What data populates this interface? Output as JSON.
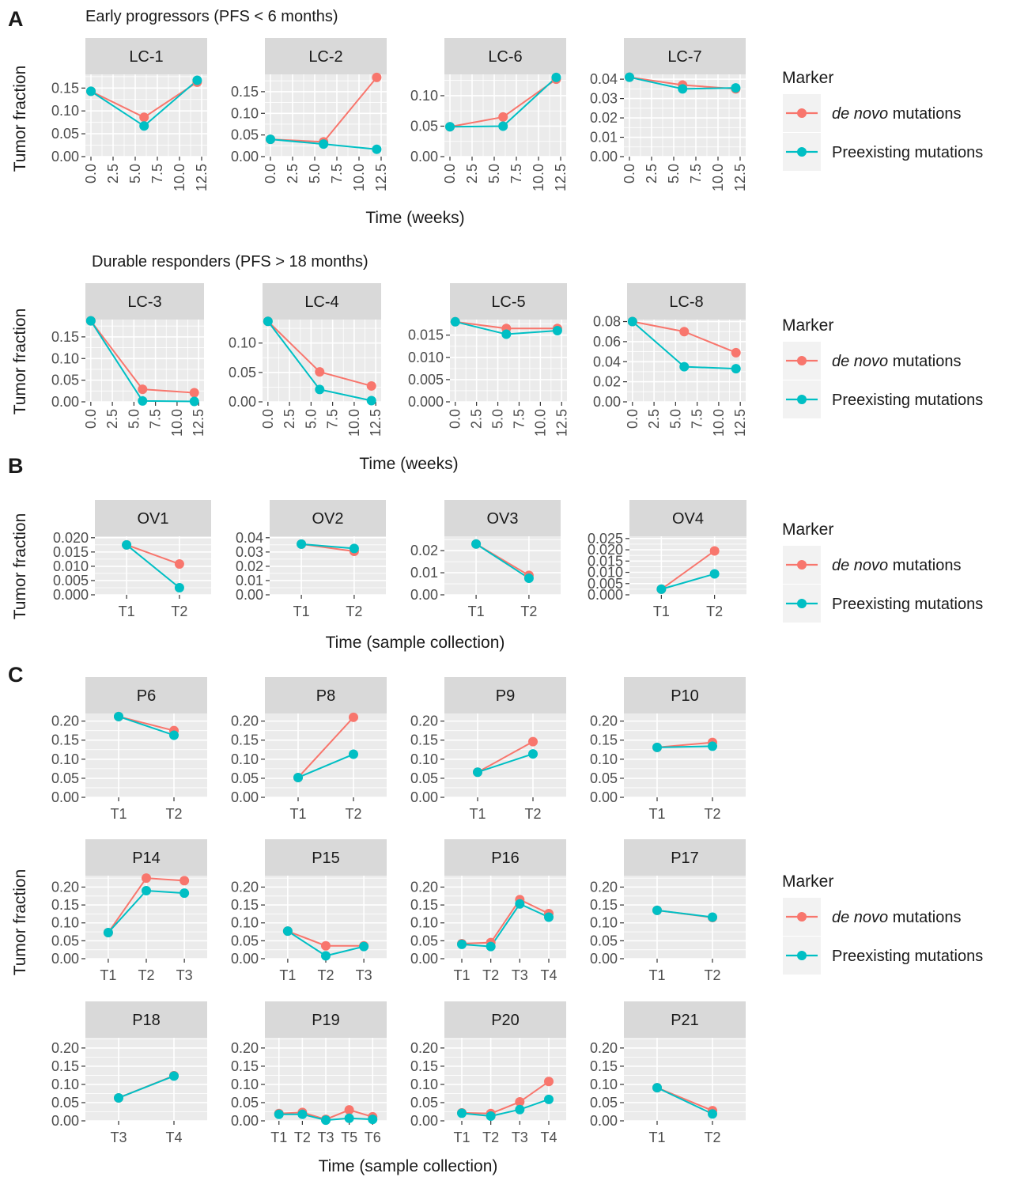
{
  "colors": {
    "denovo": "#F8766D",
    "preexisting": "#00BFC4",
    "panel_bg": "#EBEBEB",
    "strip_bg": "#D9D9D9",
    "grid": "#FFFFFF",
    "text": "#1A1A1A",
    "tick_text": "#4D4D4D"
  },
  "section_a": {
    "letter": "A",
    "rows": [
      {
        "title": "Early progressors (PFS < 6 months)",
        "ylabel": "Tumor fraction",
        "xlabel": "Time (weeks)"
      },
      {
        "title": "Durable responders (PFS > 18 months)",
        "ylabel": "Tumor fraction",
        "xlabel": "Time (weeks)"
      }
    ]
  },
  "section_b": {
    "letter": "B",
    "ylabel": "Tumor fraction",
    "xlabel": "Time (sample collection)"
  },
  "section_c": {
    "letter": "C",
    "ylabel": "Tumor fraction",
    "xlabel": "Time (sample collection)"
  },
  "legend": {
    "title": "Marker",
    "items": [
      {
        "prefix": "de novo",
        "suffix": " mutations",
        "color": "#F8766D"
      },
      {
        "prefix": "",
        "suffix": "Preexisting mutations",
        "color": "#00BFC4"
      }
    ]
  },
  "chart_data": [
    {
      "type": "line",
      "id": "LC-1",
      "strip": "LC-1",
      "x_kind": "numeric",
      "x_ticks": [
        "0.0",
        "2.5",
        "5.0",
        "7.5",
        "10.0",
        "12.5"
      ],
      "xlim": [
        0,
        12.5
      ],
      "ylim": [
        0,
        0.18
      ],
      "y_ticks": [
        "0.00",
        "0.05",
        "0.10",
        "0.15"
      ],
      "series": [
        {
          "name": "de novo mutations",
          "x": [
            0,
            6,
            12
          ],
          "y": [
            0.143,
            0.086,
            0.163
          ]
        },
        {
          "name": "Preexisting mutations",
          "x": [
            0,
            6,
            12
          ],
          "y": [
            0.143,
            0.067,
            0.167
          ]
        }
      ]
    },
    {
      "type": "line",
      "id": "LC-2",
      "strip": "LC-2",
      "x_kind": "numeric",
      "x_ticks": [
        "0.0",
        "2.5",
        "5.0",
        "7.5",
        "10.0",
        "12.5"
      ],
      "xlim": [
        0,
        12.5
      ],
      "ylim": [
        0,
        0.19
      ],
      "y_ticks": [
        "0.00",
        "0.05",
        "0.10",
        "0.15"
      ],
      "series": [
        {
          "name": "de novo mutations",
          "x": [
            0,
            6,
            12
          ],
          "y": [
            0.04,
            0.034,
            0.183
          ]
        },
        {
          "name": "Preexisting mutations",
          "x": [
            0,
            6,
            12
          ],
          "y": [
            0.04,
            0.029,
            0.017
          ]
        }
      ]
    },
    {
      "type": "line",
      "id": "LC-6",
      "strip": "LC-6",
      "x_kind": "numeric",
      "x_ticks": [
        "0.0",
        "2.5",
        "5.0",
        "7.5",
        "10.0",
        "12.5"
      ],
      "xlim": [
        0,
        12.5
      ],
      "ylim": [
        0,
        0.135
      ],
      "y_ticks": [
        "0.00",
        "0.05",
        "0.10"
      ],
      "series": [
        {
          "name": "de novo mutations",
          "x": [
            0,
            6,
            12
          ],
          "y": [
            0.049,
            0.065,
            0.127
          ]
        },
        {
          "name": "Preexisting mutations",
          "x": [
            0,
            6,
            12
          ],
          "y": [
            0.049,
            0.05,
            0.13
          ]
        }
      ]
    },
    {
      "type": "line",
      "id": "LC-7",
      "strip": "LC-7",
      "x_kind": "numeric",
      "x_ticks": [
        "0.0",
        "2.5",
        "5.0",
        "7.5",
        "10.0",
        "12.5"
      ],
      "xlim": [
        0,
        12.5
      ],
      "ylim": [
        0,
        0.0425
      ],
      "y_ticks": [
        "0.00",
        "0.01",
        "0.02",
        "0.03",
        "0.04"
      ],
      "series": [
        {
          "name": "de novo mutations",
          "x": [
            0,
            6,
            12
          ],
          "y": [
            0.041,
            0.037,
            0.035
          ]
        },
        {
          "name": "Preexisting mutations",
          "x": [
            0,
            6,
            12
          ],
          "y": [
            0.041,
            0.035,
            0.0355
          ]
        }
      ]
    },
    {
      "type": "line",
      "id": "LC-3",
      "strip": "LC-3",
      "x_kind": "numeric",
      "x_ticks": [
        "0.0",
        "2.5",
        "5.0",
        "7.5",
        "10.0",
        "12.5"
      ],
      "xlim": [
        0,
        12.5
      ],
      "ylim": [
        0,
        0.19
      ],
      "y_ticks": [
        "0.00",
        "0.05",
        "0.10",
        "0.15"
      ],
      "series": [
        {
          "name": "de novo mutations",
          "x": [
            0,
            6,
            12
          ],
          "y": [
            0.187,
            0.029,
            0.021
          ]
        },
        {
          "name": "Preexisting mutations",
          "x": [
            0,
            6,
            12
          ],
          "y": [
            0.187,
            0.002,
            0.001
          ]
        }
      ]
    },
    {
      "type": "line",
      "id": "LC-4",
      "strip": "LC-4",
      "x_kind": "numeric",
      "x_ticks": [
        "0.0",
        "2.5",
        "5.0",
        "7.5",
        "10.0",
        "12.5"
      ],
      "xlim": [
        0,
        12.5
      ],
      "ylim": [
        0,
        0.14
      ],
      "y_ticks": [
        "0.00",
        "0.05",
        "0.10"
      ],
      "series": [
        {
          "name": "de novo mutations",
          "x": [
            0,
            6,
            12
          ],
          "y": [
            0.137,
            0.051,
            0.027
          ]
        },
        {
          "name": "Preexisting mutations",
          "x": [
            0,
            6,
            12
          ],
          "y": [
            0.137,
            0.021,
            0.002
          ]
        }
      ]
    },
    {
      "type": "line",
      "id": "LC-5",
      "strip": "LC-5",
      "x_kind": "numeric",
      "x_ticks": [
        "0.0",
        "2.5",
        "5.0",
        "7.5",
        "10.0",
        "12.5"
      ],
      "xlim": [
        0,
        12.5
      ],
      "ylim": [
        0,
        0.0185
      ],
      "y_ticks": [
        "0.000",
        "0.005",
        "0.010",
        "0.015"
      ],
      "series": [
        {
          "name": "de novo mutations",
          "x": [
            0,
            6,
            12
          ],
          "y": [
            0.018,
            0.0165,
            0.0165
          ]
        },
        {
          "name": "Preexisting mutations",
          "x": [
            0,
            6,
            12
          ],
          "y": [
            0.018,
            0.0152,
            0.016
          ]
        }
      ]
    },
    {
      "type": "line",
      "id": "LC-8",
      "strip": "LC-8",
      "x_kind": "numeric",
      "x_ticks": [
        "0.0",
        "2.5",
        "5.0",
        "7.5",
        "10.0",
        "12.5"
      ],
      "xlim": [
        0,
        12.5
      ],
      "ylim": [
        0,
        0.082
      ],
      "y_ticks": [
        "0.00",
        "0.02",
        "0.04",
        "0.06",
        "0.08"
      ],
      "series": [
        {
          "name": "de novo mutations",
          "x": [
            0,
            6,
            12
          ],
          "y": [
            0.08,
            0.07,
            0.049
          ]
        },
        {
          "name": "Preexisting mutations",
          "x": [
            0,
            6,
            12
          ],
          "y": [
            0.08,
            0.035,
            0.033
          ]
        }
      ]
    },
    {
      "type": "line",
      "id": "OV1",
      "strip": "OV1",
      "x_kind": "categorical",
      "categories": [
        "T1",
        "T2"
      ],
      "ylim": [
        0,
        0.0205
      ],
      "y_ticks": [
        "0.000",
        "0.005",
        "0.010",
        "0.015",
        "0.020"
      ],
      "series": [
        {
          "name": "de novo mutations",
          "y": [
            0.0175,
            0.0108
          ]
        },
        {
          "name": "Preexisting mutations",
          "y": [
            0.0175,
            0.0025
          ]
        }
      ]
    },
    {
      "type": "line",
      "id": "OV2",
      "strip": "OV2",
      "x_kind": "categorical",
      "categories": [
        "T1",
        "T2"
      ],
      "ylim": [
        0,
        0.041
      ],
      "y_ticks": [
        "0.00",
        "0.01",
        "0.02",
        "0.03",
        "0.04"
      ],
      "series": [
        {
          "name": "de novo mutations",
          "y": [
            0.0355,
            0.0305
          ]
        },
        {
          "name": "Preexisting mutations",
          "y": [
            0.0355,
            0.0325
          ]
        }
      ]
    },
    {
      "type": "line",
      "id": "OV3",
      "strip": "OV3",
      "x_kind": "categorical",
      "categories": [
        "T1",
        "T2"
      ],
      "ylim": [
        0,
        0.0265
      ],
      "y_ticks": [
        "0.00",
        "0.01",
        "0.02"
      ],
      "series": [
        {
          "name": "de novo mutations",
          "y": [
            0.023,
            0.0088
          ]
        },
        {
          "name": "Preexisting mutations",
          "y": [
            0.023,
            0.0075
          ]
        }
      ]
    },
    {
      "type": "line",
      "id": "OV4",
      "strip": "OV4",
      "x_kind": "categorical",
      "categories": [
        "T1",
        "T2"
      ],
      "ylim": [
        0,
        0.026
      ],
      "y_ticks": [
        "0.000",
        "0.005",
        "0.010",
        "0.015",
        "0.020",
        "0.025"
      ],
      "series": [
        {
          "name": "de novo mutations",
          "y": [
            0.0025,
            0.0195
          ]
        },
        {
          "name": "Preexisting mutations",
          "y": [
            0.0025,
            0.0093
          ]
        }
      ]
    },
    {
      "type": "line",
      "id": "P6",
      "strip": "P6",
      "x_kind": "categorical",
      "categories": [
        "T1",
        "T2"
      ],
      "ylim": [
        0,
        0.22
      ],
      "y_ticks": [
        "0.00",
        "0.05",
        "0.10",
        "0.15",
        "0.20"
      ],
      "series": [
        {
          "name": "de novo mutations",
          "y": [
            0.212,
            0.175
          ]
        },
        {
          "name": "Preexisting mutations",
          "y": [
            0.212,
            0.163
          ]
        }
      ]
    },
    {
      "type": "line",
      "id": "P8",
      "strip": "P8",
      "x_kind": "categorical",
      "categories": [
        "T1",
        "T2"
      ],
      "ylim": [
        0,
        0.22
      ],
      "y_ticks": [
        "0.00",
        "0.05",
        "0.10",
        "0.15",
        "0.20"
      ],
      "series": [
        {
          "name": "de novo mutations",
          "y": [
            0.052,
            0.21
          ]
        },
        {
          "name": "Preexisting mutations",
          "y": [
            0.052,
            0.113
          ]
        }
      ]
    },
    {
      "type": "line",
      "id": "P9",
      "strip": "P9",
      "x_kind": "categorical",
      "categories": [
        "T1",
        "T2"
      ],
      "ylim": [
        0,
        0.22
      ],
      "y_ticks": [
        "0.00",
        "0.05",
        "0.10",
        "0.15",
        "0.20"
      ],
      "series": [
        {
          "name": "de novo mutations",
          "y": [
            0.066,
            0.146
          ]
        },
        {
          "name": "Preexisting mutations",
          "y": [
            0.066,
            0.114
          ]
        }
      ]
    },
    {
      "type": "line",
      "id": "P10",
      "strip": "P10",
      "x_kind": "categorical",
      "categories": [
        "T1",
        "T2"
      ],
      "ylim": [
        0,
        0.22
      ],
      "y_ticks": [
        "0.00",
        "0.05",
        "0.10",
        "0.15",
        "0.20"
      ],
      "series": [
        {
          "name": "de novo mutations",
          "y": [
            0.131,
            0.144
          ]
        },
        {
          "name": "Preexisting mutations",
          "y": [
            0.131,
            0.134
          ]
        }
      ]
    },
    {
      "type": "line",
      "id": "P14",
      "strip": "P14",
      "x_kind": "categorical",
      "categories": [
        "T1",
        "T2",
        "T3"
      ],
      "ylim": [
        0,
        0.232
      ],
      "y_ticks": [
        "0.00",
        "0.05",
        "0.10",
        "0.15",
        "0.20"
      ],
      "series": [
        {
          "name": "de novo mutations",
          "y": [
            0.073,
            0.225,
            0.218
          ]
        },
        {
          "name": "Preexisting mutations",
          "y": [
            0.073,
            0.19,
            0.183
          ]
        }
      ]
    },
    {
      "type": "line",
      "id": "P15",
      "strip": "P15",
      "x_kind": "categorical",
      "categories": [
        "T1",
        "T2",
        "T3"
      ],
      "ylim": [
        0,
        0.232
      ],
      "y_ticks": [
        "0.00",
        "0.05",
        "0.10",
        "0.15",
        "0.20"
      ],
      "series": [
        {
          "name": "de novo mutations",
          "y": [
            0.077,
            0.036,
            0.036
          ]
        },
        {
          "name": "Preexisting mutations",
          "y": [
            0.077,
            0.008,
            0.034
          ]
        }
      ]
    },
    {
      "type": "line",
      "id": "P16",
      "strip": "P16",
      "x_kind": "categorical",
      "categories": [
        "T1",
        "T2",
        "T3",
        "T4"
      ],
      "ylim": [
        0,
        0.232
      ],
      "y_ticks": [
        "0.00",
        "0.05",
        "0.10",
        "0.15",
        "0.20"
      ],
      "series": [
        {
          "name": "de novo mutations",
          "y": [
            0.042,
            0.045,
            0.165,
            0.126
          ]
        },
        {
          "name": "Preexisting mutations",
          "y": [
            0.04,
            0.034,
            0.153,
            0.116
          ]
        }
      ]
    },
    {
      "type": "line",
      "id": "P17",
      "strip": "P17",
      "x_kind": "categorical",
      "categories": [
        "T1",
        "T2"
      ],
      "ylim": [
        0,
        0.232
      ],
      "y_ticks": [
        "0.00",
        "0.05",
        "0.10",
        "0.15",
        "0.20"
      ],
      "series": [
        {
          "name": "de novo mutations",
          "y": [
            0.135,
            0.115
          ]
        },
        {
          "name": "Preexisting mutations",
          "y": [
            0.135,
            0.116
          ]
        }
      ]
    },
    {
      "type": "line",
      "id": "P18",
      "strip": "P18",
      "x_kind": "categorical",
      "categories": [
        "T3",
        "T4"
      ],
      "ylim": [
        0,
        0.228
      ],
      "y_ticks": [
        "0.00",
        "0.05",
        "0.10",
        "0.15",
        "0.20"
      ],
      "series": [
        {
          "name": "de novo mutations",
          "y": [
            0.063,
            0.124
          ]
        },
        {
          "name": "Preexisting mutations",
          "y": [
            0.063,
            0.123
          ]
        }
      ]
    },
    {
      "type": "line",
      "id": "P19",
      "strip": "P19",
      "x_kind": "categorical",
      "categories": [
        "T1",
        "T2",
        "T3",
        "T5",
        "T6"
      ],
      "ylim": [
        0,
        0.228
      ],
      "y_ticks": [
        "0.00",
        "0.05",
        "0.10",
        "0.15",
        "0.20"
      ],
      "series": [
        {
          "name": "de novo mutations",
          "y": [
            0.02,
            0.023,
            0.004,
            0.03,
            0.011
          ]
        },
        {
          "name": "Preexisting mutations",
          "y": [
            0.018,
            0.018,
            0.002,
            0.007,
            0.004
          ]
        }
      ]
    },
    {
      "type": "line",
      "id": "P20",
      "strip": "P20",
      "x_kind": "categorical",
      "categories": [
        "T1",
        "T2",
        "T3",
        "T4"
      ],
      "ylim": [
        0,
        0.228
      ],
      "y_ticks": [
        "0.00",
        "0.05",
        "0.10",
        "0.15",
        "0.20"
      ],
      "series": [
        {
          "name": "de novo mutations",
          "y": [
            0.022,
            0.02,
            0.052,
            0.108
          ]
        },
        {
          "name": "Preexisting mutations",
          "y": [
            0.021,
            0.013,
            0.031,
            0.059
          ]
        }
      ]
    },
    {
      "type": "line",
      "id": "P21",
      "strip": "P21",
      "x_kind": "categorical",
      "categories": [
        "T1",
        "T2"
      ],
      "ylim": [
        0,
        0.228
      ],
      "y_ticks": [
        "0.00",
        "0.05",
        "0.10",
        "0.15",
        "0.20"
      ],
      "series": [
        {
          "name": "de novo mutations",
          "y": [
            0.091,
            0.028
          ]
        },
        {
          "name": "Preexisting mutations",
          "y": [
            0.091,
            0.019
          ]
        }
      ]
    }
  ]
}
